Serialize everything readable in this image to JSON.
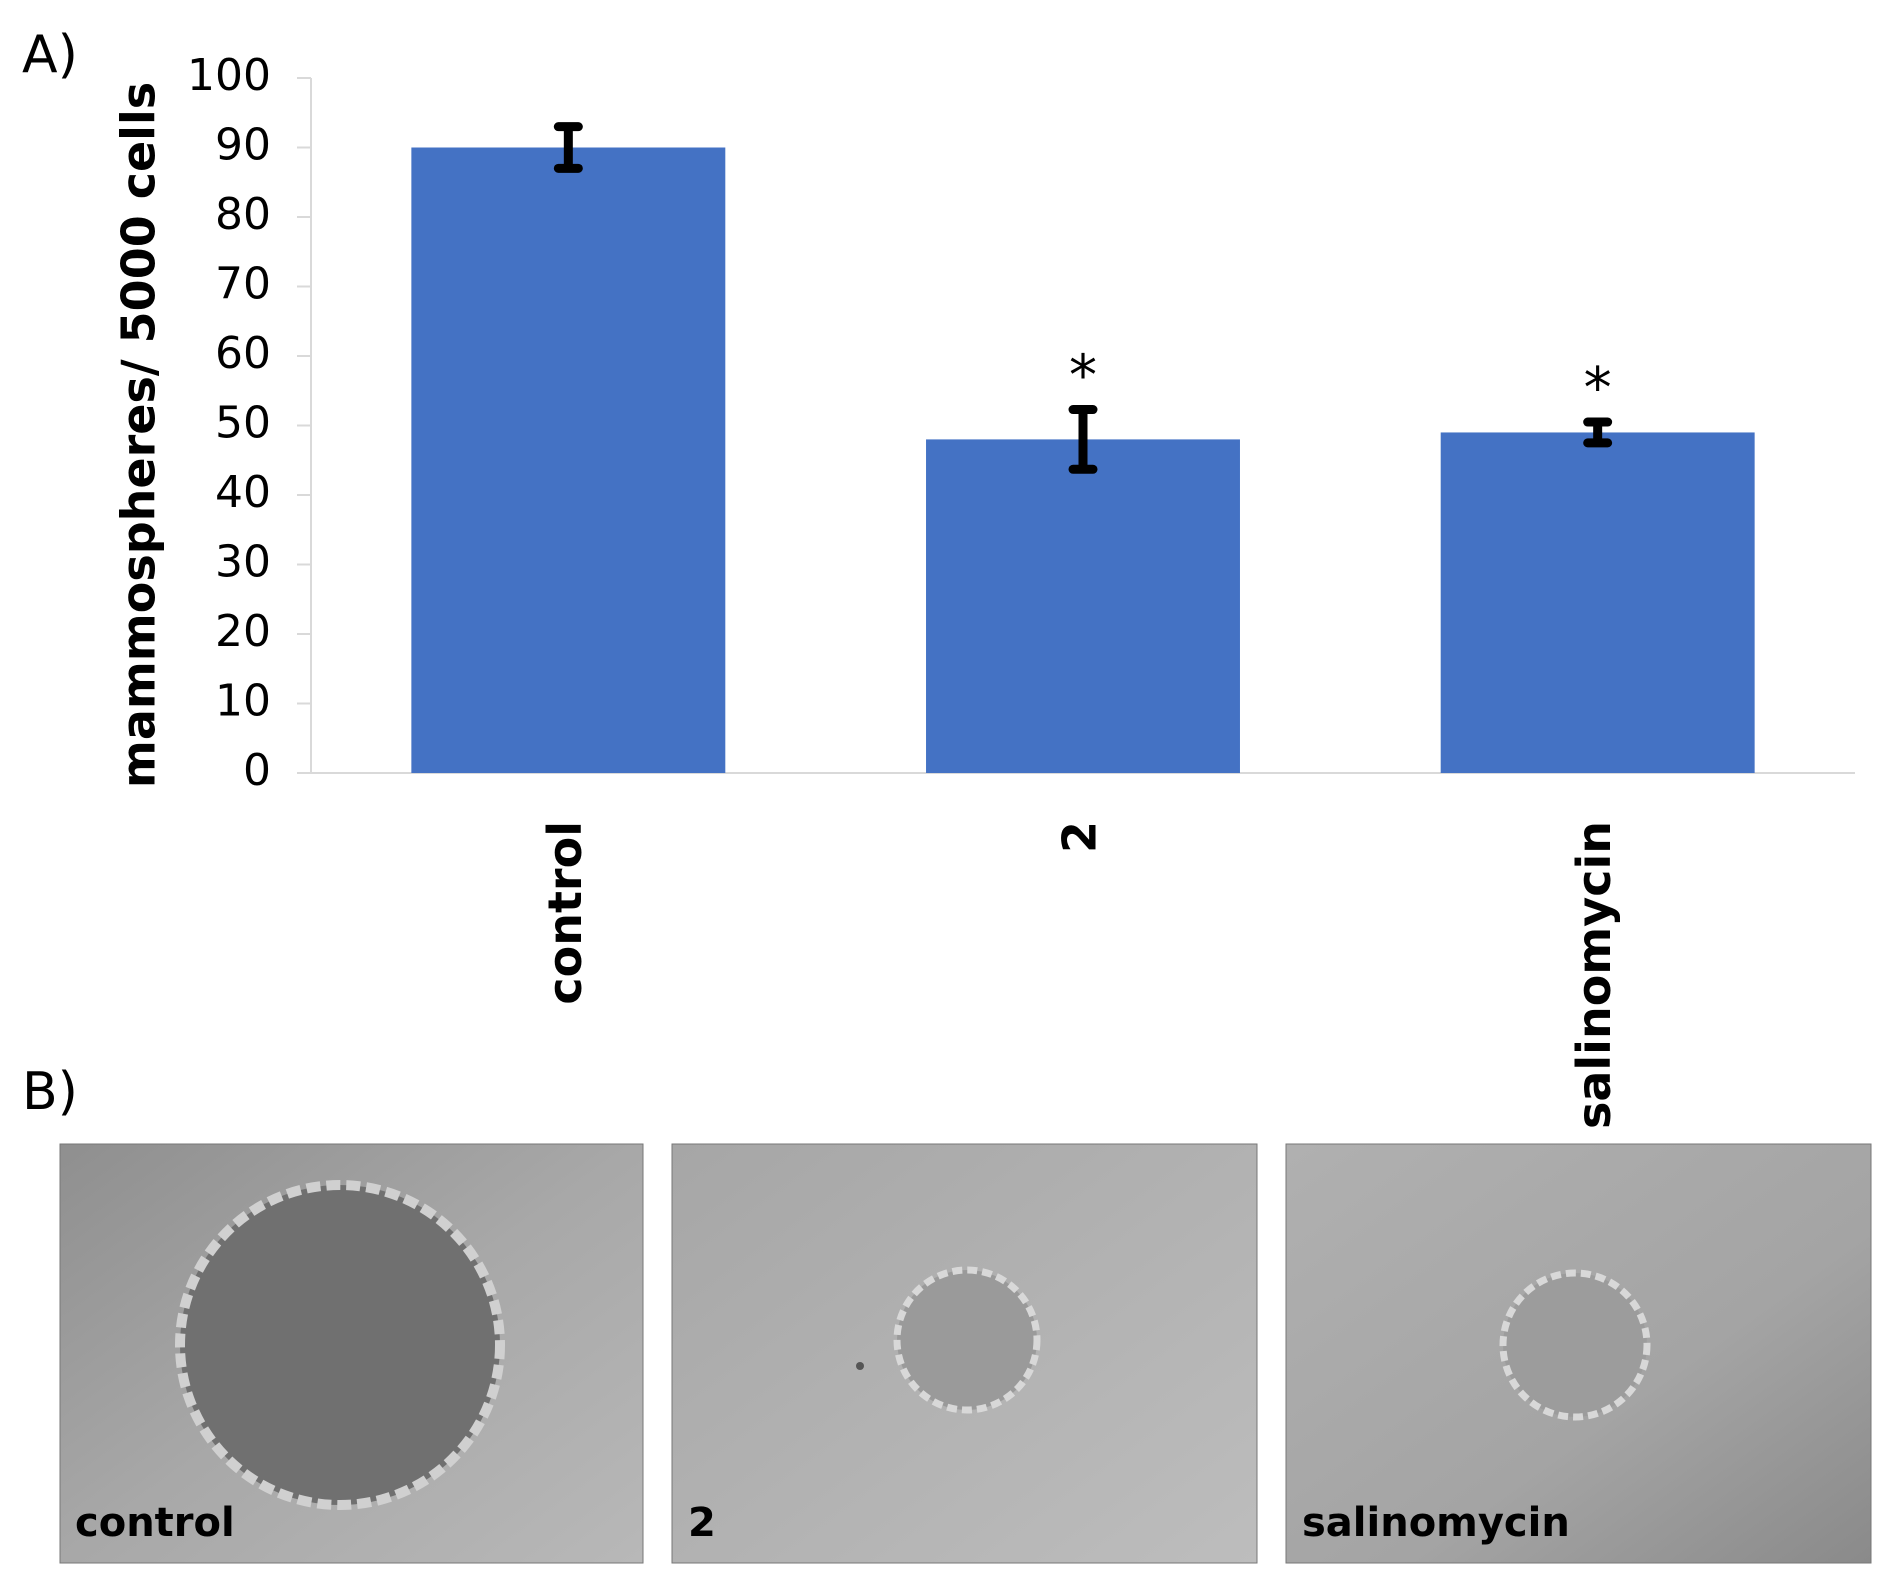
{
  "panel_a_label": "A)",
  "chart_data": {
    "type": "bar",
    "ylabel": "mammospheres/ 5000 cells",
    "categories": [
      "control",
      "2",
      "salinomycin"
    ],
    "values": [
      90,
      48,
      49
    ],
    "errors": [
      3,
      4.3,
      1.5
    ],
    "annotations": [
      null,
      "*",
      "*"
    ],
    "color": "#4472c4",
    "ylim": [
      0,
      100
    ],
    "yticks": [
      0,
      10,
      20,
      30,
      40,
      50,
      60,
      70,
      80,
      90,
      100
    ],
    "grid": false
  },
  "panel_b": {
    "label": "B)",
    "images": [
      "control",
      "2",
      "salinomycin"
    ]
  }
}
